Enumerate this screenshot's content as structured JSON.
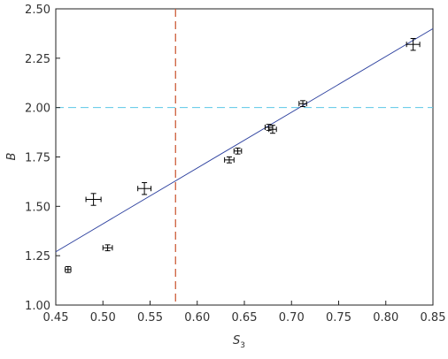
{
  "chart_data": {
    "type": "scatter",
    "xlabel_main": "S",
    "xlabel_sub": "3",
    "ylabel": "B",
    "xlim": [
      0.45,
      0.85
    ],
    "ylim": [
      1.0,
      2.5
    ],
    "xticks": [
      "0.45",
      "0.50",
      "0.55",
      "0.60",
      "0.65",
      "0.70",
      "0.75",
      "0.80",
      "0.85"
    ],
    "yticks": [
      "1.00",
      "1.25",
      "1.50",
      "1.75",
      "2.00",
      "2.25",
      "2.50"
    ],
    "grid": false,
    "points": [
      {
        "x": 0.463,
        "y": 1.18,
        "xerr": 0.003,
        "yerr": 0.015
      },
      {
        "x": 0.49,
        "y": 1.535,
        "xerr": 0.008,
        "yerr": 0.03
      },
      {
        "x": 0.505,
        "y": 1.29,
        "xerr": 0.005,
        "yerr": 0.015
      },
      {
        "x": 0.544,
        "y": 1.59,
        "xerr": 0.007,
        "yerr": 0.03
      },
      {
        "x": 0.634,
        "y": 1.735,
        "xerr": 0.005,
        "yerr": 0.015
      },
      {
        "x": 0.643,
        "y": 1.78,
        "xerr": 0.004,
        "yerr": 0.015
      },
      {
        "x": 0.676,
        "y": 1.9,
        "xerr": 0.004,
        "yerr": 0.015
      },
      {
        "x": 0.68,
        "y": 1.89,
        "xerr": 0.004,
        "yerr": 0.02
      },
      {
        "x": 0.712,
        "y": 2.02,
        "xerr": 0.004,
        "yerr": 0.015
      },
      {
        "x": 0.829,
        "y": 2.32,
        "xerr": 0.007,
        "yerr": 0.03
      }
    ],
    "fit_line": {
      "x": [
        0.45,
        0.85
      ],
      "y": [
        1.27,
        2.4
      ],
      "color": "#2b3f9e"
    },
    "vline": {
      "x": 0.577,
      "color": "#c8502a",
      "style": "dashed"
    },
    "hline": {
      "y": 2.0,
      "color": "#5bc8e8",
      "style": "dashed"
    },
    "marker_color": "#000000"
  }
}
